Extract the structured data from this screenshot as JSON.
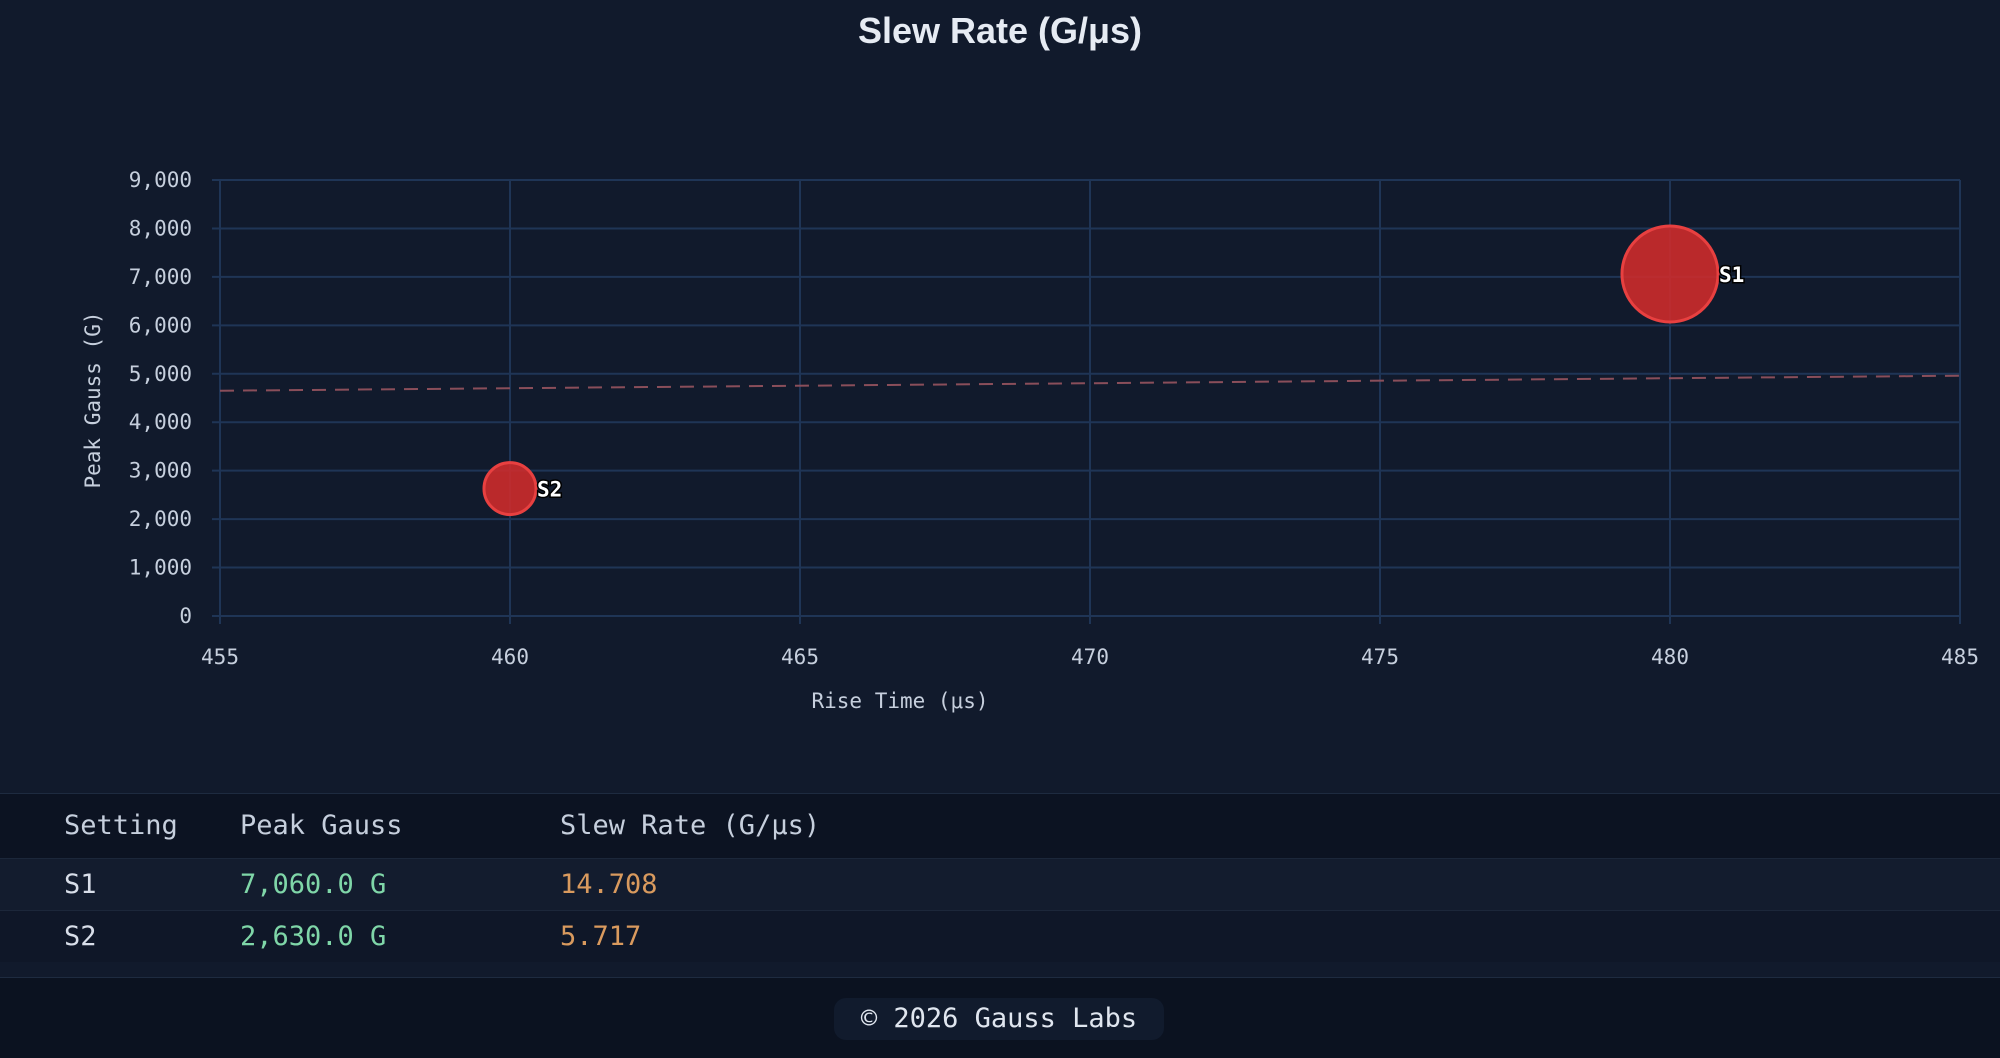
{
  "chart_data": {
    "type": "scatter",
    "title": "Slew Rate (G/μs)",
    "xlabel": "Rise Time (μs)",
    "ylabel": "Peak Gauss (G)",
    "xlim": [
      455,
      485
    ],
    "ylim": [
      0,
      9000
    ],
    "x_ticks": [
      "455",
      "460",
      "465",
      "470",
      "475",
      "480",
      "485"
    ],
    "y_ticks": [
      "0",
      "1,000",
      "2,000",
      "3,000",
      "4,000",
      "5,000",
      "6,000",
      "7,000",
      "8,000",
      "9,000"
    ],
    "grid": true,
    "points": [
      {
        "label": "S1",
        "x": 480,
        "y": 7060,
        "size": 14.708
      },
      {
        "label": "S2",
        "x": 460,
        "y": 2630,
        "size": 5.717
      }
    ],
    "trendline": {
      "x": [
        455,
        485
      ],
      "y": [
        4650,
        4960
      ]
    },
    "colors": {
      "point_fill": "#d22b2b",
      "point_stroke": "#e84040",
      "trendline": "#8a4e5a",
      "grid": "#1f3556"
    }
  },
  "table": {
    "headers": [
      "Setting",
      "Peak Gauss",
      "Slew Rate (G/μs)"
    ],
    "rows": [
      {
        "setting": "S1",
        "peak": "7,060.0 G",
        "slew": "14.708"
      },
      {
        "setting": "S2",
        "peak": "2,630.0 G",
        "slew": "5.717"
      }
    ]
  },
  "footer": {
    "text": "© 2026 Gauss Labs"
  }
}
